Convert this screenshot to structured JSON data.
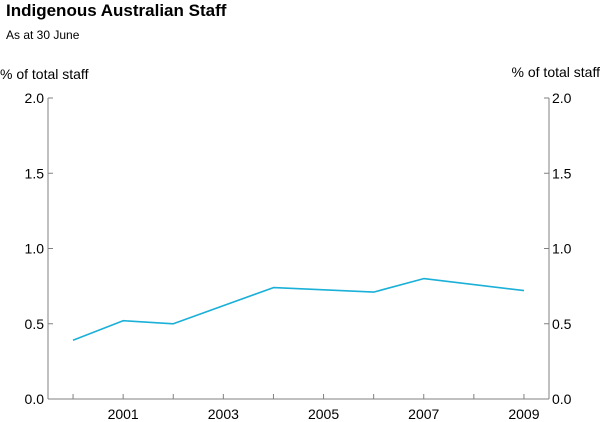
{
  "chart_data": {
    "type": "line",
    "title": "Indigenous Australian Staff",
    "subtitle": "As at 30 June",
    "ylabel_left": "% of total staff",
    "ylabel_right": "% of total staff",
    "xlabel": "",
    "ylim": [
      0,
      2
    ],
    "yticks": [
      "0.0",
      "0.5",
      "1.0",
      "1.5",
      "2.0"
    ],
    "xlim": [
      1999.5,
      2009.5
    ],
    "xtick_labels": [
      "2001",
      "2003",
      "2005",
      "2007",
      "2009"
    ],
    "grid": false,
    "series": [
      {
        "color": "#1ab0d8",
        "x": [
          2000,
          2001,
          2002,
          2004,
          2006,
          2007,
          2009
        ],
        "values": [
          0.39,
          0.52,
          0.5,
          0.74,
          0.71,
          0.8,
          0.72
        ]
      }
    ]
  }
}
